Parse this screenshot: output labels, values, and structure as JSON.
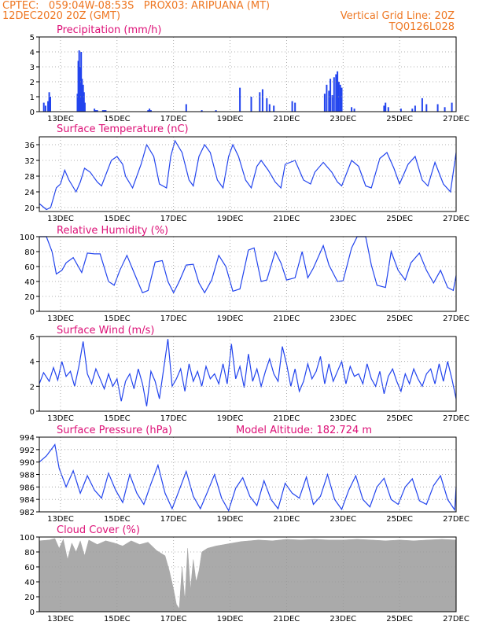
{
  "header": {
    "line1": "CPTEC:   059:04W-08:53S   PROX03: ARIPUANA (MT)",
    "line2_left": "12DEC2020 20Z (GMT)",
    "line2_right": "Vertical Grid Line: 20Z",
    "line3_right": "TQ0126L028"
  },
  "colors": {
    "header": "#ee7722",
    "title": "#dd1177",
    "series": "#2244ee",
    "cloud": "#aaaaaa",
    "grid": "#999999"
  },
  "x_axis": {
    "ticks": [
      "13DEC",
      "15DEC",
      "17DEC",
      "19DEC",
      "21DEC",
      "23DEC",
      "25DEC",
      "27DEC"
    ],
    "tick_days": [
      13,
      15,
      17,
      19,
      21,
      23,
      25,
      27
    ],
    "range_days": [
      12.25,
      27.0
    ]
  },
  "chart_data": [
    {
      "id": "precip",
      "type": "bar",
      "title": "Precipitation (mm/h)",
      "ylim": [
        0,
        5
      ],
      "yticks": [
        0,
        1,
        2,
        3,
        4,
        5
      ],
      "x": [
        12.41,
        12.47,
        12.56,
        12.6,
        12.64,
        13.6,
        13.63,
        13.66,
        13.7,
        13.73,
        13.76,
        13.8,
        13.83,
        13.86,
        14.2,
        14.25,
        14.3,
        14.5,
        14.55,
        14.6,
        16.1,
        16.15,
        16.2,
        17.45,
        18.0,
        18.5,
        19.35,
        19.75,
        20.05,
        20.15,
        20.3,
        20.4,
        20.55,
        21.2,
        21.3,
        22.35,
        22.42,
        22.5,
        22.55,
        22.62,
        22.68,
        22.75,
        22.8,
        22.85,
        22.9,
        22.95,
        23.3,
        23.4,
        24.45,
        24.5,
        24.6,
        25.05,
        25.45,
        25.55,
        25.8,
        25.95,
        26.35,
        26.6,
        26.85
      ],
      "values": [
        0.6,
        0.4,
        0.7,
        1.3,
        1.0,
        1.2,
        3.4,
        4.1,
        3.0,
        4.0,
        2.2,
        1.8,
        1.3,
        0.6,
        0.2,
        0.1,
        0.1,
        0.1,
        0.1,
        0.1,
        0.1,
        0.2,
        0.1,
        0.5,
        0.1,
        0.1,
        1.6,
        1.0,
        1.3,
        1.5,
        0.9,
        0.5,
        0.4,
        0.7,
        0.6,
        1.2,
        1.8,
        1.4,
        2.2,
        1.1,
        2.3,
        2.5,
        2.7,
        2.0,
        1.8,
        1.6,
        0.3,
        0.2,
        0.4,
        0.6,
        0.3,
        0.2,
        0.2,
        0.4,
        0.9,
        0.5,
        0.5,
        0.3,
        0.6
      ]
    },
    {
      "id": "temp",
      "type": "line",
      "title": "Surface Temperature (nC)",
      "ylim": [
        19,
        38
      ],
      "yticks": [
        20,
        24,
        28,
        32,
        36
      ],
      "x": [
        12.25,
        12.5,
        12.65,
        12.85,
        13.0,
        13.15,
        13.3,
        13.55,
        13.7,
        13.85,
        14.05,
        14.3,
        14.45,
        14.8,
        15.0,
        15.2,
        15.3,
        15.55,
        15.85,
        16.05,
        16.3,
        16.5,
        16.75,
        16.9,
        17.05,
        17.3,
        17.55,
        17.7,
        17.9,
        18.1,
        18.3,
        18.55,
        18.75,
        18.95,
        19.1,
        19.3,
        19.55,
        19.75,
        19.95,
        20.1,
        20.35,
        20.6,
        20.8,
        20.95,
        21.3,
        21.6,
        21.85,
        22.0,
        22.3,
        22.6,
        22.8,
        22.95,
        23.3,
        23.55,
        23.8,
        24.0,
        24.3,
        24.55,
        24.8,
        25.0,
        25.3,
        25.55,
        25.8,
        26.0,
        26.25,
        26.55,
        26.8,
        27.0
      ],
      "values": [
        21,
        19.5,
        20,
        25,
        26,
        29.5,
        27,
        24,
        26.5,
        30,
        29,
        26.5,
        25.5,
        32,
        33,
        31,
        28,
        25,
        31,
        36,
        33,
        26,
        25,
        33,
        37,
        34,
        27,
        25.5,
        33,
        36,
        34,
        27,
        25,
        33,
        36,
        33,
        27,
        25,
        30.5,
        32,
        29.5,
        26.5,
        25,
        31,
        32,
        27,
        26,
        29,
        31.5,
        29,
        26.5,
        25.5,
        32,
        30.5,
        25.5,
        25,
        32.5,
        34,
        30,
        26,
        31,
        33,
        27,
        25.5,
        31.5,
        26,
        24,
        34
      ]
    },
    {
      "id": "rh",
      "type": "line",
      "title": "Relative Humidity (%)",
      "ylim": [
        0,
        100
      ],
      "yticks": [
        0,
        20,
        40,
        60,
        80,
        100
      ],
      "x": [
        12.25,
        12.5,
        12.7,
        12.85,
        13.05,
        13.2,
        13.45,
        13.75,
        13.95,
        14.2,
        14.4,
        14.7,
        14.9,
        15.1,
        15.35,
        15.6,
        15.9,
        16.1,
        16.35,
        16.6,
        16.8,
        17.0,
        17.2,
        17.45,
        17.7,
        17.9,
        18.1,
        18.35,
        18.6,
        18.85,
        19.1,
        19.35,
        19.65,
        19.85,
        20.1,
        20.3,
        20.6,
        20.8,
        21.0,
        21.3,
        21.55,
        21.75,
        21.95,
        22.3,
        22.5,
        22.8,
        23.0,
        23.3,
        23.5,
        23.8,
        24.0,
        24.2,
        24.5,
        24.7,
        24.95,
        25.2,
        25.4,
        25.7,
        25.95,
        26.2,
        26.45,
        26.7,
        26.9,
        27.0
      ],
      "values": [
        100,
        100,
        80,
        50,
        55,
        65,
        72,
        52,
        78,
        77,
        77,
        40,
        35,
        55,
        75,
        52,
        25,
        28,
        66,
        68,
        40,
        25,
        40,
        62,
        63,
        38,
        25,
        42,
        75,
        60,
        27,
        30,
        82,
        85,
        40,
        42,
        80,
        65,
        42,
        45,
        80,
        45,
        58,
        88,
        62,
        40,
        41,
        85,
        100,
        100,
        62,
        35,
        32,
        80,
        55,
        42,
        65,
        78,
        55,
        38,
        55,
        32,
        28,
        48
      ]
    },
    {
      "id": "wind",
      "type": "line",
      "title": "Surface Wind (m/s)",
      "ylim": [
        0,
        6
      ],
      "yticks": [
        0,
        2,
        4,
        6
      ],
      "x": [
        12.25,
        12.4,
        12.6,
        12.75,
        12.9,
        13.05,
        13.2,
        13.35,
        13.5,
        13.65,
        13.8,
        13.95,
        14.1,
        14.25,
        14.4,
        14.55,
        14.7,
        14.85,
        15.0,
        15.15,
        15.3,
        15.45,
        15.6,
        15.75,
        15.9,
        16.05,
        16.2,
        16.35,
        16.5,
        16.65,
        16.8,
        16.95,
        17.1,
        17.25,
        17.4,
        17.55,
        17.7,
        17.85,
        18.0,
        18.15,
        18.3,
        18.45,
        18.6,
        18.75,
        18.9,
        19.05,
        19.2,
        19.35,
        19.5,
        19.65,
        19.8,
        19.95,
        20.1,
        20.25,
        20.4,
        20.55,
        20.7,
        20.85,
        21.0,
        21.15,
        21.3,
        21.45,
        21.6,
        21.75,
        21.9,
        22.05,
        22.2,
        22.35,
        22.5,
        22.65,
        22.8,
        22.95,
        23.1,
        23.25,
        23.4,
        23.55,
        23.7,
        23.85,
        24.0,
        24.15,
        24.3,
        24.45,
        24.6,
        24.75,
        24.9,
        25.05,
        25.2,
        25.35,
        25.5,
        25.65,
        25.8,
        25.95,
        26.1,
        26.25,
        26.4,
        26.55,
        26.7,
        26.85,
        27.0
      ],
      "values": [
        2.2,
        3.1,
        2.4,
        3.5,
        2.5,
        4.0,
        2.8,
        3.2,
        2.0,
        3.6,
        5.6,
        3.0,
        2.2,
        3.4,
        2.6,
        1.8,
        3.0,
        2.0,
        2.6,
        0.8,
        2.4,
        3.0,
        1.8,
        3.4,
        2.2,
        0.4,
        3.2,
        2.4,
        1.0,
        3.4,
        5.8,
        2.0,
        2.6,
        3.4,
        1.6,
        3.8,
        2.4,
        3.2,
        2.0,
        3.6,
        2.6,
        3.0,
        2.2,
        3.8,
        2.2,
        5.4,
        2.6,
        3.6,
        1.9,
        4.6,
        2.4,
        3.4,
        2.0,
        3.2,
        4.2,
        3.0,
        2.4,
        5.2,
        3.8,
        2.0,
        3.4,
        1.6,
        2.4,
        3.8,
        2.6,
        3.2,
        4.4,
        2.2,
        3.8,
        2.4,
        3.2,
        4.0,
        2.2,
        3.6,
        2.8,
        3.0,
        2.2,
        3.8,
        2.6,
        2.0,
        3.2,
        1.4,
        2.8,
        3.4,
        2.4,
        1.6,
        3.0,
        2.2,
        3.4,
        2.6,
        2.0,
        3.0,
        3.4,
        2.2,
        3.8,
        2.4,
        4.0,
        2.6,
        1.0
      ]
    },
    {
      "id": "pres",
      "type": "line",
      "title": "Surface Pressure (hPa)",
      "ylim": [
        982,
        994
      ],
      "yticks": [
        982,
        984,
        986,
        988,
        990,
        992,
        994
      ],
      "x": [
        12.25,
        12.5,
        12.8,
        12.95,
        13.2,
        13.45,
        13.7,
        13.95,
        14.2,
        14.45,
        14.7,
        14.95,
        15.2,
        15.45,
        15.7,
        15.95,
        16.2,
        16.45,
        16.7,
        16.95,
        17.2,
        17.45,
        17.7,
        17.95,
        18.2,
        18.45,
        18.7,
        18.95,
        19.2,
        19.45,
        19.7,
        19.95,
        20.2,
        20.45,
        20.7,
        20.95,
        21.2,
        21.45,
        21.7,
        21.95,
        22.2,
        22.45,
        22.7,
        22.95,
        23.2,
        23.45,
        23.7,
        23.95,
        24.2,
        24.45,
        24.7,
        24.95,
        25.2,
        25.45,
        25.7,
        25.95,
        26.2,
        26.45,
        26.7,
        26.95,
        27.0
      ],
      "values": [
        990,
        991,
        992.8,
        989,
        986,
        988.6,
        985,
        987.8,
        985.5,
        984.2,
        988.2,
        985.5,
        983.5,
        988,
        985,
        983.2,
        986.5,
        989.5,
        985,
        982.5,
        985.5,
        988.5,
        984.5,
        982.5,
        985.2,
        988,
        984.2,
        982.2,
        985.8,
        987.5,
        984.5,
        983,
        987,
        984,
        982.5,
        986.6,
        985,
        984.2,
        987.6,
        983.2,
        984.5,
        988,
        984,
        982.4,
        985.5,
        987.8,
        984,
        982.8,
        986,
        987.4,
        984,
        983.2,
        986,
        987.3,
        983.8,
        983.2,
        986.2,
        987.8,
        984,
        982.3,
        986
      ]
    },
    {
      "id": "cloud",
      "type": "area",
      "title": "Cloud Cover (%)",
      "ylim": [
        0,
        100
      ],
      "yticks": [
        0,
        20,
        40,
        60,
        80,
        100
      ],
      "x": [
        12.25,
        12.6,
        12.8,
        12.95,
        13.1,
        13.25,
        13.4,
        13.55,
        13.7,
        13.85,
        14.0,
        14.3,
        14.6,
        14.9,
        15.2,
        15.5,
        15.8,
        16.1,
        16.4,
        16.7,
        16.85,
        17.0,
        17.1,
        17.2,
        17.3,
        17.4,
        17.5,
        17.6,
        17.7,
        17.8,
        17.9,
        18.0,
        18.2,
        18.5,
        18.8,
        19.1,
        19.4,
        19.7,
        20.0,
        20.5,
        21.0,
        21.5,
        22.0,
        22.5,
        23.0,
        23.5,
        24.0,
        24.5,
        25.0,
        25.5,
        26.0,
        26.5,
        27.0
      ],
      "values": [
        95,
        96,
        98,
        85,
        97,
        70,
        92,
        80,
        95,
        75,
        96,
        90,
        95,
        92,
        88,
        95,
        90,
        93,
        82,
        75,
        55,
        30,
        10,
        4,
        60,
        15,
        85,
        30,
        70,
        40,
        55,
        80,
        85,
        88,
        90,
        92,
        94,
        95,
        96,
        95,
        97,
        96,
        97,
        96,
        96,
        97,
        96,
        95,
        96,
        95,
        96,
        97,
        96
      ]
    }
  ],
  "annotations": {
    "model_altitude": "Model Altitude: 182.724 m"
  }
}
